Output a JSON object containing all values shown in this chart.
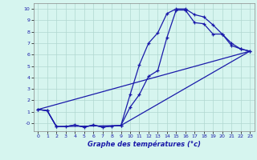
{
  "xlabel": "Graphe des températures (°c)",
  "background_color": "#d6f5ef",
  "grid_color": "#b0d8d0",
  "line_color": "#1a1aaa",
  "xlim": [
    -0.5,
    23.5
  ],
  "ylim": [
    -0.7,
    10.5
  ],
  "yticks": [
    0,
    1,
    2,
    3,
    4,
    5,
    6,
    7,
    8,
    9,
    10
  ],
  "ytick_labels": [
    "-0",
    "1",
    "2",
    "3",
    "4",
    "5",
    "6",
    "7",
    "8",
    "9",
    "10"
  ],
  "xticks": [
    0,
    1,
    2,
    3,
    4,
    5,
    6,
    7,
    8,
    9,
    10,
    11,
    12,
    13,
    14,
    15,
    16,
    17,
    18,
    19,
    20,
    21,
    22,
    23
  ],
  "curve1_x": [
    0,
    1,
    2,
    3,
    4,
    5,
    6,
    7,
    8,
    9,
    10,
    11,
    12,
    13,
    14,
    15,
    16,
    17,
    18,
    19,
    20,
    21,
    22,
    23
  ],
  "curve1_y": [
    1.2,
    1.1,
    -0.3,
    -0.3,
    -0.15,
    -0.35,
    -0.15,
    -0.35,
    -0.25,
    -0.2,
    2.5,
    5.1,
    7.0,
    7.9,
    9.6,
    10.0,
    10.0,
    9.5,
    9.3,
    8.6,
    7.8,
    7.0,
    6.5,
    6.3
  ],
  "curve2_x": [
    0,
    1,
    2,
    9,
    10,
    11,
    12,
    13,
    14,
    15,
    16,
    17,
    18,
    19,
    20,
    21,
    22,
    23
  ],
  "curve2_y": [
    1.2,
    1.1,
    -0.3,
    -0.2,
    1.4,
    2.5,
    4.1,
    4.6,
    7.5,
    9.9,
    9.9,
    8.8,
    8.7,
    7.8,
    7.8,
    6.8,
    6.5,
    6.3
  ],
  "curve3_x": [
    0,
    23
  ],
  "curve3_y": [
    1.2,
    6.3
  ],
  "curve4_x": [
    0,
    1,
    2,
    3,
    4,
    5,
    6,
    7,
    8,
    9,
    23
  ],
  "curve4_y": [
    1.2,
    1.1,
    -0.3,
    -0.3,
    -0.15,
    -0.35,
    -0.15,
    -0.35,
    -0.25,
    -0.2,
    6.3
  ]
}
